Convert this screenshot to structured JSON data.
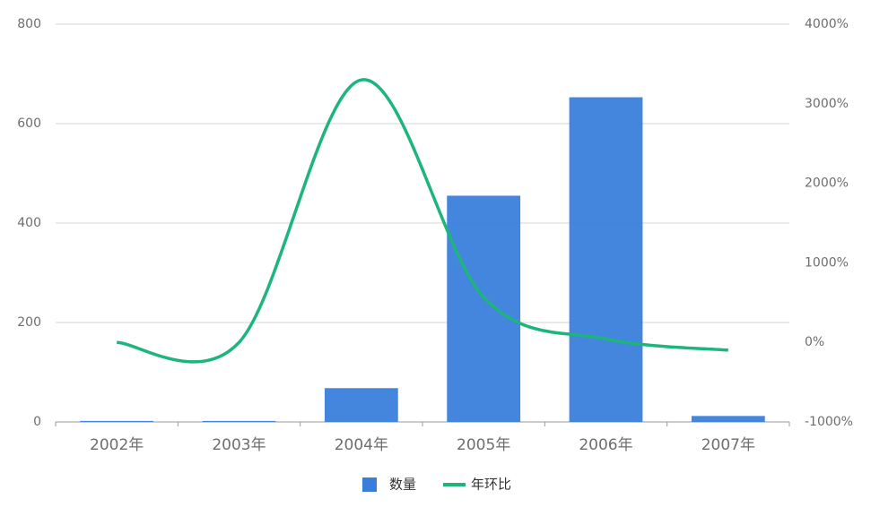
{
  "chart_data": {
    "type": "bar",
    "categories": [
      "2002年",
      "2003年",
      "2004年",
      "2005年",
      "2006年",
      "2007年"
    ],
    "series": [
      {
        "name": "数量",
        "type": "bar",
        "color": "#3a7edb",
        "values": [
          2,
          2,
          68,
          455,
          653,
          12
        ]
      },
      {
        "name": "年环比",
        "type": "line",
        "axis": "y2",
        "color": "#1db57c",
        "smooth": true,
        "values": [
          0,
          0,
          3300,
          569,
          44,
          -98
        ]
      }
    ],
    "ylim": [
      0,
      800
    ],
    "yticks": [
      0,
      200,
      400,
      600,
      800
    ],
    "y2lim": [
      -1000,
      4000
    ],
    "y2ticks": [
      {
        "value": -1000,
        "label": "-1000%"
      },
      {
        "value": 0,
        "label": "0%"
      },
      {
        "value": 1000,
        "label": "1000%"
      },
      {
        "value": 2000,
        "label": "2000%"
      },
      {
        "value": 3000,
        "label": "3000%"
      },
      {
        "value": 4000,
        "label": "4000%"
      }
    ],
    "grid": true,
    "legend": "bottom"
  }
}
